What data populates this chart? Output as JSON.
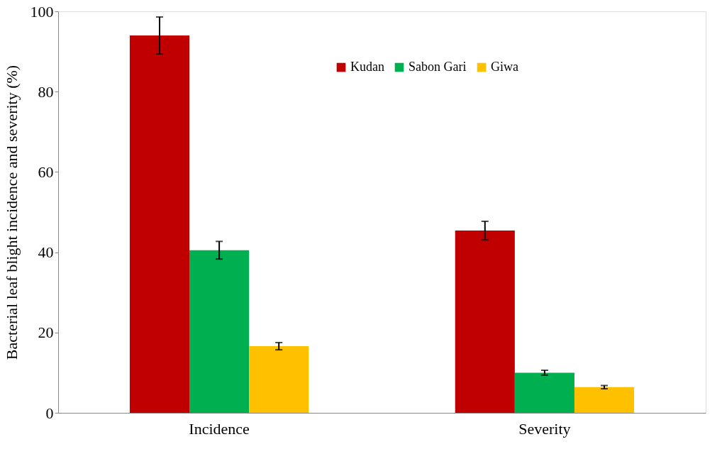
{
  "chart_data": {
    "type": "bar",
    "ylabel": "Bacterial leaf blight incidence and severity (%)",
    "categories": [
      "Incidence",
      "Severity"
    ],
    "series": [
      {
        "name": "Kudan",
        "color": "#c00000",
        "values": [
          94.0,
          45.4
        ],
        "errors": [
          4.6,
          2.3
        ]
      },
      {
        "name": "Sabon Gari",
        "color": "#00b050",
        "values": [
          40.5,
          10.0
        ],
        "errors": [
          2.2,
          0.6
        ]
      },
      {
        "name": "Giwa",
        "color": "#ffc000",
        "values": [
          16.6,
          6.4
        ],
        "errors": [
          0.9,
          0.4
        ]
      }
    ],
    "ylim": [
      0,
      100
    ],
    "yticks": [
      0,
      20,
      40,
      60,
      80,
      100
    ],
    "grid": false,
    "legend": "top right"
  }
}
